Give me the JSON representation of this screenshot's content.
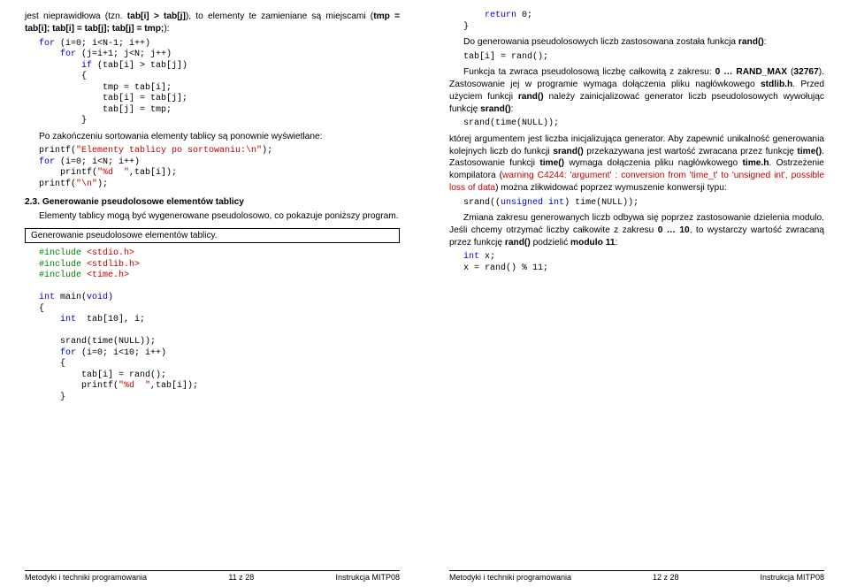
{
  "left": {
    "p1_a": "jest nieprawidłowa (tzn. ",
    "p1_b": "tab[i] > tab[j]",
    "p1_c": "), to elementy te zamieniane są miejscami (",
    "p1_d": "tmp = tab[i]; tab[i] = tab[j]; tab[j] = tmp;",
    "p1_e": "):",
    "code1": "for (i=0; i<N-1; i++)\n    for (j=i+1; j<N; j++)\n        if (tab[i] > tab[j])\n        {\n            tmp = tab[i];\n            tab[i] = tab[j];\n            tab[j] = tmp;\n        }",
    "p2": "Po zakończeniu sortowania elementy tablicy są ponownie wyświetlane:",
    "code2a": "printf(\"Elementy tablicy po sortowaniu:\\n\");",
    "code2b": "for (i=0; i<N; i++)\n    printf(\"%d  \",tab[i]);\nprintf(\"\\n\");",
    "sec_title": "2.3. Generowanie pseudolosowe elementów tablicy",
    "p3": "Elementy tablicy mogą być wygenerowane pseudolosowo, co pokazuje poniższy program.",
    "frame1": "Generowanie pseudolosowe elementów tablicy.",
    "code3_inc": "#include <stdio.h>\n#include <stdlib.h>\n#include <time.h>",
    "code3_main1": "int main(void)\n{",
    "code3_main2": "    int  tab[10], i;\n\n    srand(time(NULL));",
    "code3_for": "    for (i=0; i<10; i++)\n    {\n        tab[i] = rand();\n        printf(\"%d  \",tab[i]);\n    }",
    "footer_l": "Metodyki i techniki programowania",
    "footer_c": "11 z 28",
    "footer_r": "Instrukcja MITP08"
  },
  "right": {
    "code_top": "    return 0;\n}",
    "p1_a": "Do generowania pseudolosowych liczb zastosowana została funkcja ",
    "p1_b": "rand()",
    "code1": "tab[i] = rand();",
    "p2_a": "Funkcja ta zwraca pseudolosową liczbę całkowitą z zakresu: ",
    "p2_b": "0 … RAND_MAX",
    "p2_c": " (",
    "p2_d": "32767",
    "p2_e": "). Zastosowanie jej w programie wymaga dołączenia pliku nagłówkowego ",
    "p2_f": "stdlib.h",
    "p2_g": ". Przed użyciem funkcji ",
    "p2_h": "rand()",
    "p2_i": " należy zainicjalizować generator liczb pseudolosowych wywołując funkcję ",
    "p2_j": "srand()",
    "code2": "srand(time(NULL));",
    "p3_a": "której argumentem jest liczba inicjalizująca generator. Aby zapewnić unikalność generowania kolejnych liczb do funkcji ",
    "p3_b": "srand()",
    "p3_c": " przekazywana jest wartość zwracana przez funkcję ",
    "p3_d": "time()",
    "p3_e": ". Zastosowanie funkcji ",
    "p3_f": "time()",
    "p3_g": " wymaga dołączenia pliku nagłówkowego ",
    "p3_h": "time.h",
    "p3_i": ". Ostrzeżenie kompilatora (",
    "p3_warn": "warning C4244: 'argument' : conversion from 'time_t' to 'unsigned int', possible loss of data",
    "p3_j": ") można zlikwidować poprzez wymuszenie konwersji typu:",
    "code3": "srand((unsigned int) time(NULL));",
    "p4_a": "Zmiana zakresu generowanych liczb odbywa się poprzez zastosowanie dzielenia modulo. Jeśli chcemy otrzymać liczby całkowite z zakresu ",
    "p4_b": "0 … 10",
    "p4_c": ", to wystarczy wartość zwracaną przez funkcję ",
    "p4_d": "rand()",
    "p4_e": " podzielić ",
    "p4_f": "modulo 11",
    "code4": "int x;\nx = rand() % 11;",
    "footer_l": "Metodyki i techniki programowania",
    "footer_c": "12 z 28",
    "footer_r": "Instrukcja MITP08"
  }
}
